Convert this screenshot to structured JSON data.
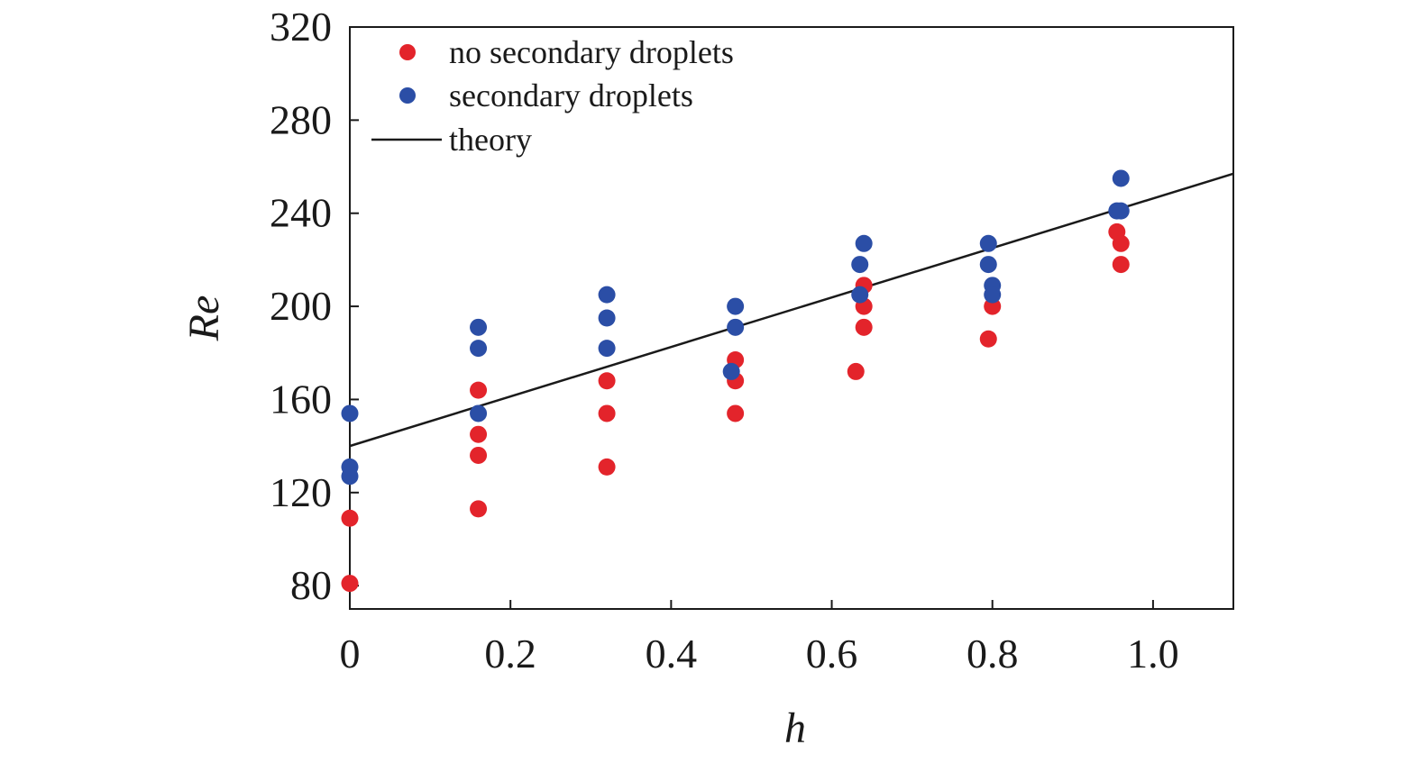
{
  "chart_data": {
    "type": "scatter",
    "xlabel": "h",
    "ylabel": "Re",
    "xlim": [
      0,
      1.1
    ],
    "ylim": [
      70,
      320
    ],
    "x_ticks": [
      {
        "value": 0,
        "label": "0"
      },
      {
        "value": 0.2,
        "label": "0.2"
      },
      {
        "value": 0.4,
        "label": "0.4"
      },
      {
        "value": 0.6,
        "label": "0.6"
      },
      {
        "value": 0.8,
        "label": "0.8"
      },
      {
        "value": 1.0,
        "label": "1.0"
      }
    ],
    "y_ticks": [
      {
        "value": 80,
        "label": "80"
      },
      {
        "value": 120,
        "label": "120"
      },
      {
        "value": 160,
        "label": "160"
      },
      {
        "value": 200,
        "label": "200"
      },
      {
        "value": 240,
        "label": "240"
      },
      {
        "value": 280,
        "label": "280"
      },
      {
        "value": 320,
        "label": "320"
      }
    ],
    "grid": false,
    "legend_position": "top-left",
    "series": [
      {
        "name": "no secondary droplets",
        "kind": "points",
        "color": "#e3242b",
        "points": [
          {
            "x": 0.0,
            "y": 81
          },
          {
            "x": 0.0,
            "y": 109
          },
          {
            "x": 0.16,
            "y": 113
          },
          {
            "x": 0.16,
            "y": 136
          },
          {
            "x": 0.16,
            "y": 145
          },
          {
            "x": 0.16,
            "y": 164
          },
          {
            "x": 0.32,
            "y": 131
          },
          {
            "x": 0.32,
            "y": 154
          },
          {
            "x": 0.32,
            "y": 168
          },
          {
            "x": 0.48,
            "y": 154
          },
          {
            "x": 0.48,
            "y": 168
          },
          {
            "x": 0.48,
            "y": 177
          },
          {
            "x": 0.63,
            "y": 172
          },
          {
            "x": 0.64,
            "y": 191
          },
          {
            "x": 0.64,
            "y": 200
          },
          {
            "x": 0.64,
            "y": 209
          },
          {
            "x": 0.795,
            "y": 186
          },
          {
            "x": 0.8,
            "y": 200
          },
          {
            "x": 0.955,
            "y": 232
          },
          {
            "x": 0.96,
            "y": 227
          },
          {
            "x": 0.96,
            "y": 218
          }
        ]
      },
      {
        "name": "secondary droplets",
        "kind": "points",
        "color": "#2b4ea6",
        "points": [
          {
            "x": 0.0,
            "y": 127
          },
          {
            "x": 0.0,
            "y": 131
          },
          {
            "x": 0.0,
            "y": 154
          },
          {
            "x": 0.16,
            "y": 154
          },
          {
            "x": 0.16,
            "y": 182
          },
          {
            "x": 0.16,
            "y": 191
          },
          {
            "x": 0.32,
            "y": 182
          },
          {
            "x": 0.32,
            "y": 195
          },
          {
            "x": 0.32,
            "y": 205
          },
          {
            "x": 0.475,
            "y": 172
          },
          {
            "x": 0.48,
            "y": 191
          },
          {
            "x": 0.48,
            "y": 200
          },
          {
            "x": 0.635,
            "y": 205
          },
          {
            "x": 0.635,
            "y": 218
          },
          {
            "x": 0.64,
            "y": 227
          },
          {
            "x": 0.795,
            "y": 227
          },
          {
            "x": 0.795,
            "y": 218
          },
          {
            "x": 0.8,
            "y": 209
          },
          {
            "x": 0.8,
            "y": 205
          },
          {
            "x": 0.955,
            "y": 241
          },
          {
            "x": 0.96,
            "y": 241
          },
          {
            "x": 0.96,
            "y": 255
          }
        ]
      },
      {
        "name": "theory",
        "kind": "line",
        "color": "#1a1a1a",
        "points": [
          {
            "x": 0.0,
            "y": 140
          },
          {
            "x": 1.1,
            "y": 257
          }
        ]
      }
    ]
  }
}
